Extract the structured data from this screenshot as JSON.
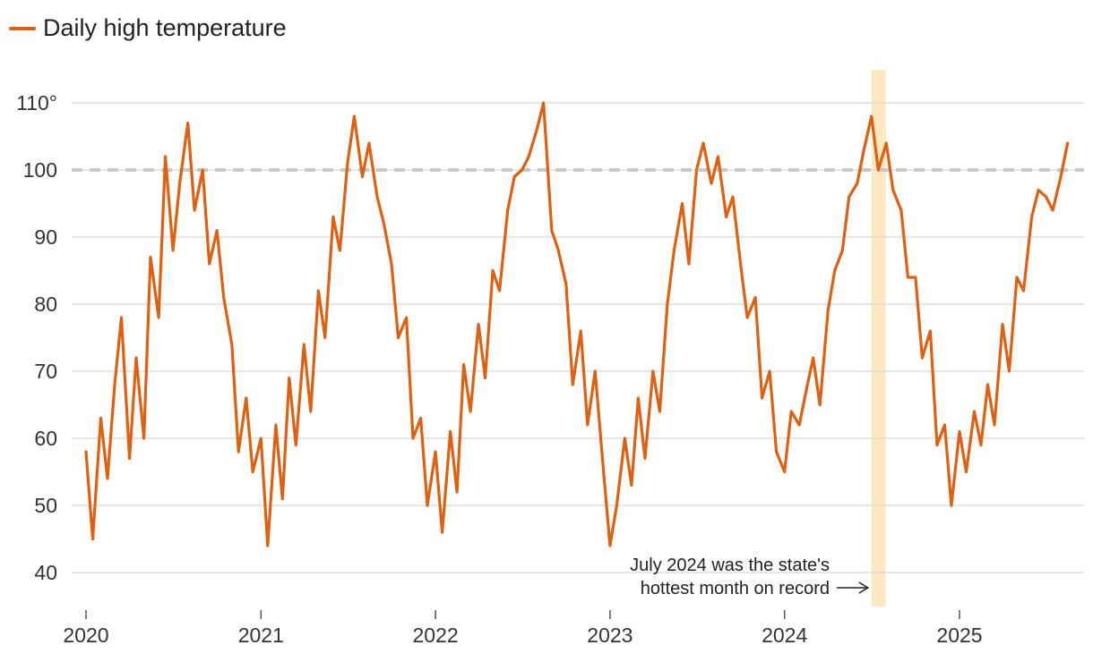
{
  "colors": {
    "line": "#e0600f",
    "grid": "#dddddd",
    "reference": "#c8c8c8",
    "highlight": "#fde9bf"
  },
  "chart_data": {
    "type": "line",
    "title": "",
    "xlabel": "",
    "ylabel": "",
    "x_range": [
      "2020-01-01",
      "2025-08-31"
    ],
    "ylim": [
      35,
      115
    ],
    "y_ticks": [
      40,
      50,
      60,
      70,
      80,
      90,
      100,
      110
    ],
    "y_tick_labels": [
      "40",
      "50",
      "60",
      "70",
      "80",
      "90",
      "100",
      "110°"
    ],
    "x_ticks": [
      "2020-01-01",
      "2021-01-01",
      "2022-01-01",
      "2023-01-01",
      "2024-01-01",
      "2025-01-01"
    ],
    "x_tick_labels": [
      "2020",
      "2021",
      "2022",
      "2023",
      "2024",
      "2025"
    ],
    "grid": "horizontal",
    "legend": {
      "position": "top-left",
      "entries": [
        "Daily high temperature"
      ]
    },
    "reference_line": {
      "y": 100,
      "style": "dashed"
    },
    "highlight_span": {
      "start": "2024-07-01",
      "end": "2024-07-31"
    },
    "annotation": {
      "lines": [
        "July 2024 was the state's",
        "hottest month on record"
      ],
      "target": "2024-07-01"
    },
    "series": [
      {
        "name": "Daily high temperature",
        "x": [
          "2020-01-01",
          "2020-01-15",
          "2020-02-01",
          "2020-02-15",
          "2020-03-01",
          "2020-03-15",
          "2020-04-01",
          "2020-04-15",
          "2020-05-01",
          "2020-05-15",
          "2020-06-01",
          "2020-06-15",
          "2020-07-01",
          "2020-07-15",
          "2020-08-01",
          "2020-08-15",
          "2020-09-01",
          "2020-09-15",
          "2020-10-01",
          "2020-10-15",
          "2020-11-01",
          "2020-11-15",
          "2020-12-01",
          "2020-12-15",
          "2021-01-01",
          "2021-01-15",
          "2021-02-01",
          "2021-02-15",
          "2021-03-01",
          "2021-03-15",
          "2021-04-01",
          "2021-04-15",
          "2021-05-01",
          "2021-05-15",
          "2021-06-01",
          "2021-06-15",
          "2021-07-01",
          "2021-07-15",
          "2021-08-01",
          "2021-08-15",
          "2021-09-01",
          "2021-09-15",
          "2021-10-01",
          "2021-10-15",
          "2021-11-01",
          "2021-11-15",
          "2021-12-01",
          "2021-12-15",
          "2022-01-01",
          "2022-01-15",
          "2022-02-01",
          "2022-02-15",
          "2022-03-01",
          "2022-03-15",
          "2022-04-01",
          "2022-04-15",
          "2022-05-01",
          "2022-05-15",
          "2022-06-01",
          "2022-06-15",
          "2022-07-01",
          "2022-07-15",
          "2022-08-01",
          "2022-08-15",
          "2022-09-01",
          "2022-09-15",
          "2022-10-01",
          "2022-10-15",
          "2022-11-01",
          "2022-11-15",
          "2022-12-01",
          "2022-12-15",
          "2023-01-01",
          "2023-01-15",
          "2023-02-01",
          "2023-02-15",
          "2023-03-01",
          "2023-03-15",
          "2023-04-01",
          "2023-04-15",
          "2023-05-01",
          "2023-05-15",
          "2023-06-01",
          "2023-06-15",
          "2023-07-01",
          "2023-07-15",
          "2023-08-01",
          "2023-08-15",
          "2023-09-01",
          "2023-09-15",
          "2023-10-01",
          "2023-10-15",
          "2023-11-01",
          "2023-11-15",
          "2023-12-01",
          "2023-12-15",
          "2024-01-01",
          "2024-01-15",
          "2024-02-01",
          "2024-02-15",
          "2024-03-01",
          "2024-03-15",
          "2024-04-01",
          "2024-04-15",
          "2024-05-01",
          "2024-05-15",
          "2024-06-01",
          "2024-06-15",
          "2024-07-01",
          "2024-07-15",
          "2024-08-01",
          "2024-08-15",
          "2024-09-01",
          "2024-09-15",
          "2024-10-01",
          "2024-10-15",
          "2024-11-01",
          "2024-11-15",
          "2024-12-01",
          "2024-12-15",
          "2025-01-01",
          "2025-01-15",
          "2025-02-01",
          "2025-02-15",
          "2025-03-01",
          "2025-03-15",
          "2025-04-01",
          "2025-04-15",
          "2025-05-01",
          "2025-05-15",
          "2025-06-01",
          "2025-06-15",
          "2025-07-01",
          "2025-07-15",
          "2025-08-01",
          "2025-08-15"
        ],
        "values": [
          58,
          45,
          63,
          54,
          68,
          78,
          57,
          72,
          60,
          87,
          78,
          102,
          88,
          98,
          107,
          94,
          100,
          86,
          91,
          81,
          74,
          58,
          66,
          55,
          60,
          44,
          62,
          51,
          69,
          59,
          74,
          64,
          82,
          75,
          93,
          88,
          101,
          108,
          99,
          104,
          96,
          92,
          86,
          75,
          78,
          60,
          63,
          50,
          58,
          46,
          61,
          52,
          71,
          64,
          77,
          69,
          85,
          82,
          94,
          99,
          100,
          102,
          106,
          110,
          91,
          88,
          83,
          68,
          76,
          62,
          70,
          58,
          44,
          50,
          60,
          53,
          66,
          57,
          70,
          64,
          80,
          88,
          95,
          86,
          100,
          104,
          98,
          102,
          93,
          96,
          86,
          78,
          81,
          66,
          70,
          58,
          55,
          64,
          62,
          67,
          72,
          65,
          79,
          85,
          88,
          96,
          98,
          103,
          108,
          100,
          104,
          97,
          94,
          84,
          84,
          72,
          76,
          59,
          62,
          50,
          61,
          55,
          64,
          59,
          68,
          62,
          77,
          70,
          84,
          82,
          93,
          97,
          96,
          94,
          99,
          104
        ]
      }
    ]
  }
}
